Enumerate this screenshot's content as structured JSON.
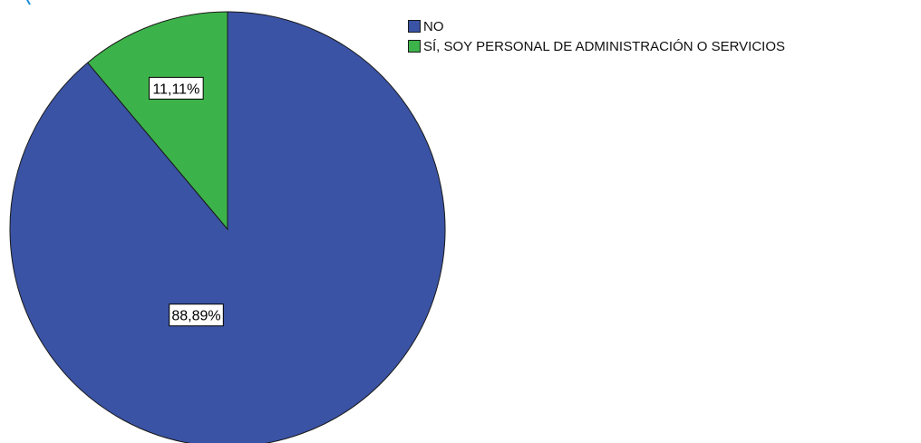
{
  "chart_data": {
    "type": "pie",
    "title": "",
    "categories": [
      "NO",
      "SÍ, SOY PERSONAL DE ADMINISTRACIÓN O SERVICIOS"
    ],
    "values": [
      88.89,
      11.11
    ],
    "data_labels": [
      "88,89%",
      "11,11%"
    ],
    "colors": [
      "#3a53a4",
      "#3cb34a"
    ],
    "start_angle": "12 o'clock",
    "direction": "counter-clockwise for the smaller slice",
    "legend_position": "top-right"
  },
  "legend": {
    "items": [
      {
        "label": "NO",
        "color": "#3a53a4"
      },
      {
        "label": "SÍ, SOY PERSONAL DE ADMINISTRACIÓN O SERVICIOS",
        "color": "#3cb34a"
      }
    ]
  }
}
